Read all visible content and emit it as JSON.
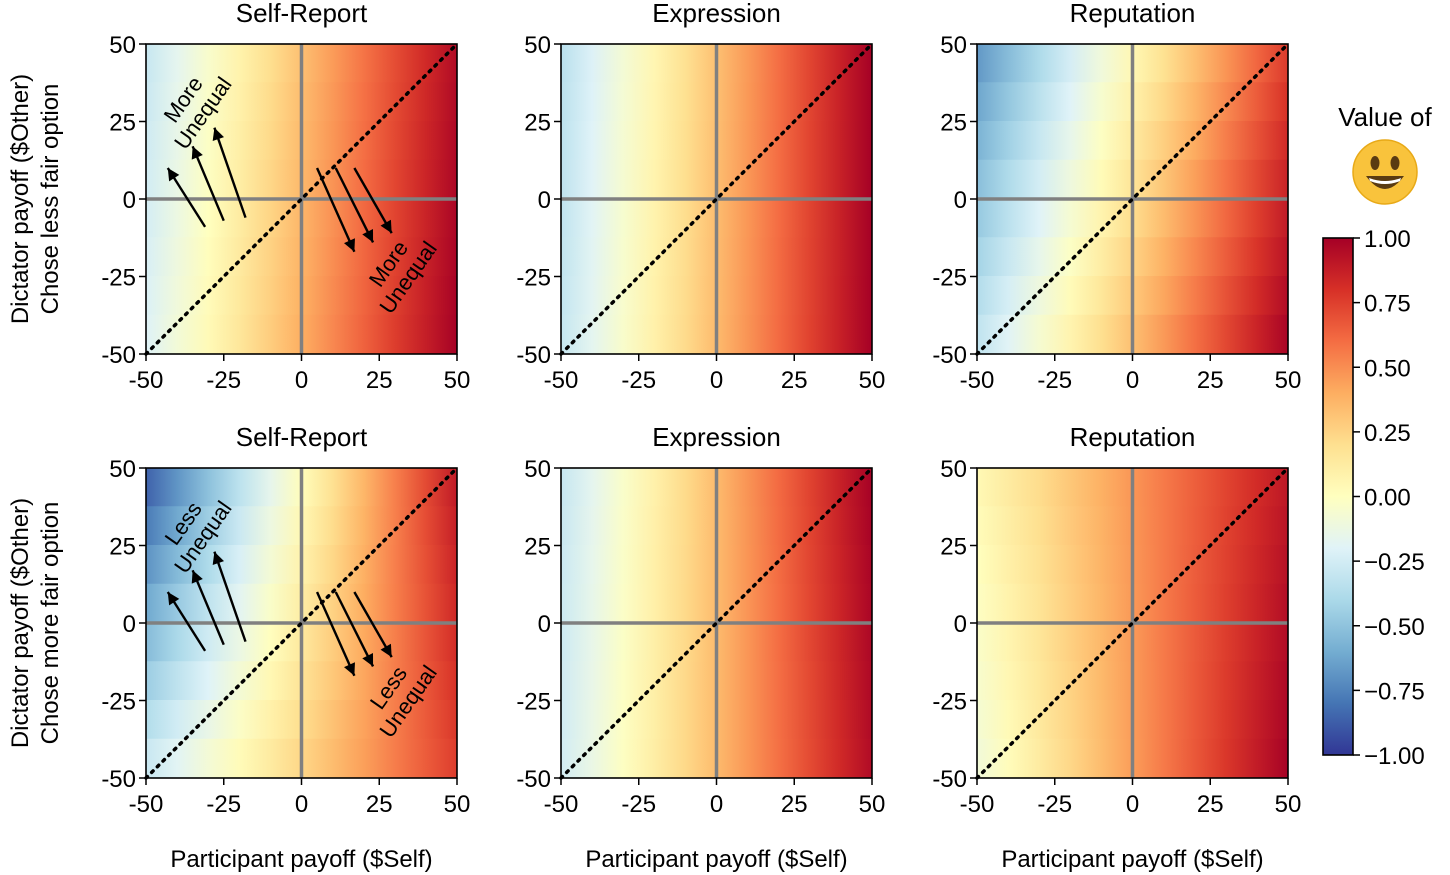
{
  "chart_data": {
    "type": "heatmap",
    "x_axis_label": "Participant payoff ($Self)",
    "row_labels": [
      {
        "line1": "Dictator payoff ($Other)",
        "line2": "Chose less fair option"
      },
      {
        "line1": "Dictator payoff ($Other)",
        "line2": "Chose more fair option"
      }
    ],
    "xlim": [
      -50,
      50
    ],
    "ylim": [
      -50,
      50
    ],
    "x_ticks": [
      -50,
      -25,
      0,
      25,
      50
    ],
    "y_ticks": [
      50,
      25,
      0,
      -25,
      -50
    ],
    "x_tick_labels": [
      "-50",
      "-25",
      "0",
      "25",
      "50"
    ],
    "y_tick_labels": [
      "50",
      "25",
      "0",
      "-25",
      "-50"
    ],
    "reference_lines": [
      "x = 0",
      "y = 0",
      "y = x (dotted)"
    ],
    "panels": [
      {
        "row": 0,
        "col": 0,
        "title": "Self-Report",
        "value_at_corners": {
          "(-50,50)": -0.3,
          "(-50,-50)": -0.2,
          "(50,50)": 0.95,
          "(50,-50)": 1.0
        },
        "annotations": [
          {
            "text_lines": [
              "More",
              "Unequal"
            ],
            "position": "upper-left"
          },
          {
            "text_lines": [
              "More",
              "Unequal"
            ],
            "position": "lower-right"
          }
        ]
      },
      {
        "row": 0,
        "col": 1,
        "title": "Expression",
        "value_at_corners": {
          "(-50,50)": -0.35,
          "(-50,-50)": -0.3,
          "(50,50)": 1.0,
          "(50,-50)": 1.0
        },
        "annotations": []
      },
      {
        "row": 0,
        "col": 2,
        "title": "Reputation",
        "value_at_corners": {
          "(-50,50)": -0.7,
          "(-50,-50)": -0.3,
          "(50,50)": 0.75,
          "(50,-50)": 1.0
        },
        "annotations": []
      },
      {
        "row": 1,
        "col": 0,
        "title": "Self-Report",
        "value_at_corners": {
          "(-50,50)": -0.9,
          "(-50,-50)": -0.25,
          "(50,50)": 0.9,
          "(50,-50)": 0.75
        },
        "annotations": [
          {
            "text_lines": [
              "Less",
              "Unequal"
            ],
            "position": "upper-left"
          },
          {
            "text_lines": [
              "Less",
              "Unequal"
            ],
            "position": "lower-right"
          }
        ]
      },
      {
        "row": 1,
        "col": 1,
        "title": "Expression",
        "value_at_corners": {
          "(-50,50)": -0.3,
          "(-50,-50)": -0.25,
          "(50,50)": 1.0,
          "(50,-50)": 0.95
        },
        "annotations": []
      },
      {
        "row": 1,
        "col": 2,
        "title": "Reputation",
        "value_at_corners": {
          "(-50,50)": 0.05,
          "(-50,-50)": -0.1,
          "(50,50)": 0.9,
          "(50,-50)": 1.0
        },
        "annotations": []
      }
    ],
    "colorbar": {
      "title": "Value of",
      "icon": "smiling-face-emoji",
      "colormap": "RdYlBu_r",
      "range": [
        -1.0,
        1.0
      ],
      "ticks": [
        1.0,
        0.75,
        0.5,
        0.25,
        0.0,
        -0.25,
        -0.5,
        -0.75,
        -1.0
      ],
      "tick_labels": [
        "1.00",
        "0.75",
        "0.50",
        "0.25",
        "0.00",
        "−0.25",
        "−0.50",
        "−0.75",
        "−1.00"
      ],
      "colors": [
        "#313695",
        "#4575b4",
        "#74add1",
        "#abd9e9",
        "#e0f3f8",
        "#ffffbf",
        "#fee090",
        "#fdae61",
        "#f46d43",
        "#d73027",
        "#a50026"
      ]
    }
  }
}
